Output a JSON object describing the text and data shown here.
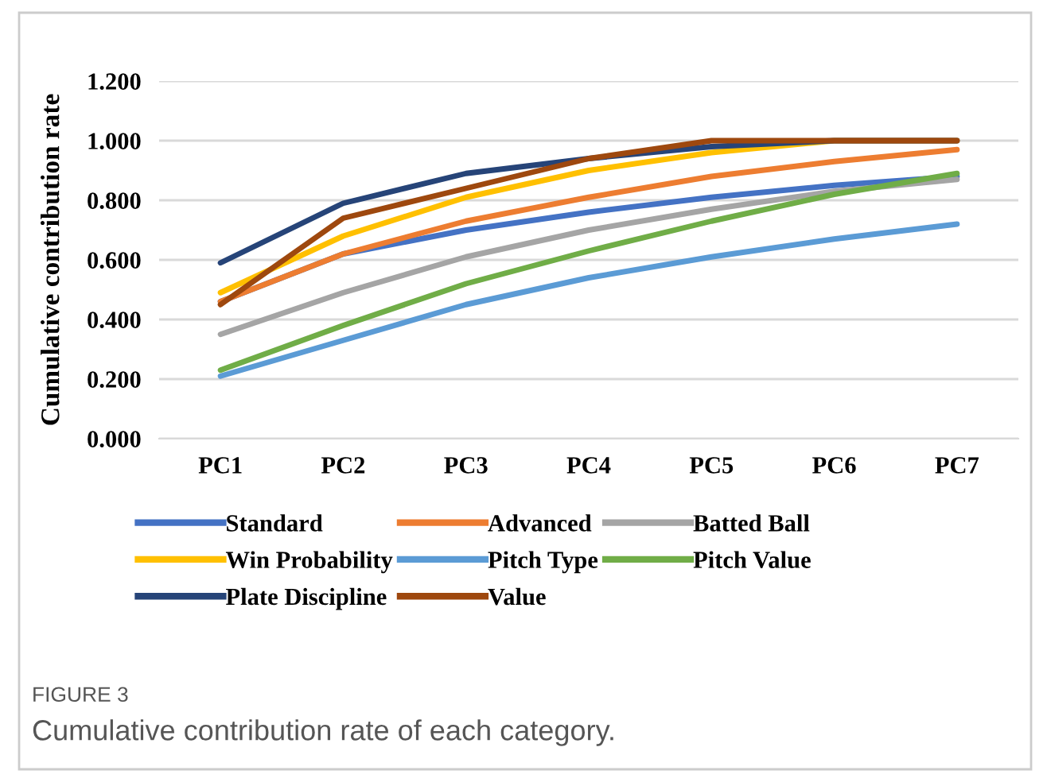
{
  "chart_data": {
    "type": "line",
    "ylabel": "Cumulative contribution rate",
    "categories": [
      "PC1",
      "PC2",
      "PC3",
      "PC4",
      "PC5",
      "PC6",
      "PC7"
    ],
    "ylim": [
      0,
      1.2
    ],
    "yticks": [
      {
        "value": 0,
        "label": "0.000"
      },
      {
        "value": 0.2,
        "label": "0.200"
      },
      {
        "value": 0.4,
        "label": "0.400"
      },
      {
        "value": 0.6,
        "label": "0.600"
      },
      {
        "value": 0.8,
        "label": "0.800"
      },
      {
        "value": 1.0,
        "label": "1.000"
      },
      {
        "value": 1.2,
        "label": "1.200"
      }
    ],
    "grid": "y",
    "legend": "bottom",
    "marker": "none",
    "line_style": "solid",
    "series": [
      {
        "name": "Standard",
        "color": "#4472c4",
        "values": [
          0.46,
          0.62,
          0.7,
          0.76,
          0.81,
          0.85,
          0.88
        ]
      },
      {
        "name": "Advanced",
        "color": "#ed7d31",
        "values": [
          0.46,
          0.62,
          0.73,
          0.81,
          0.88,
          0.93,
          0.97
        ]
      },
      {
        "name": "Batted Ball",
        "color": "#a5a5a5",
        "values": [
          0.35,
          0.49,
          0.61,
          0.7,
          0.77,
          0.83,
          0.87
        ]
      },
      {
        "name": "Win Probability",
        "color": "#ffc000",
        "values": [
          0.49,
          0.68,
          0.81,
          0.9,
          0.96,
          1.0,
          1.0
        ]
      },
      {
        "name": "Pitch Type",
        "color": "#5b9bd5",
        "values": [
          0.21,
          0.33,
          0.45,
          0.54,
          0.61,
          0.67,
          0.72
        ]
      },
      {
        "name": "Pitch Value",
        "color": "#70ad47",
        "values": [
          0.23,
          0.38,
          0.52,
          0.63,
          0.73,
          0.82,
          0.89
        ]
      },
      {
        "name": "Plate Discipline",
        "color": "#264478",
        "values": [
          0.59,
          0.79,
          0.89,
          0.94,
          0.98,
          1.0,
          1.0
        ]
      },
      {
        "name": "Value",
        "color": "#9e480e",
        "values": [
          0.45,
          0.74,
          0.84,
          0.94,
          1.0,
          1.0,
          1.0
        ]
      }
    ],
    "annotations": [
      "FIGURE 3",
      "Cumulative contribution rate of each category."
    ]
  }
}
